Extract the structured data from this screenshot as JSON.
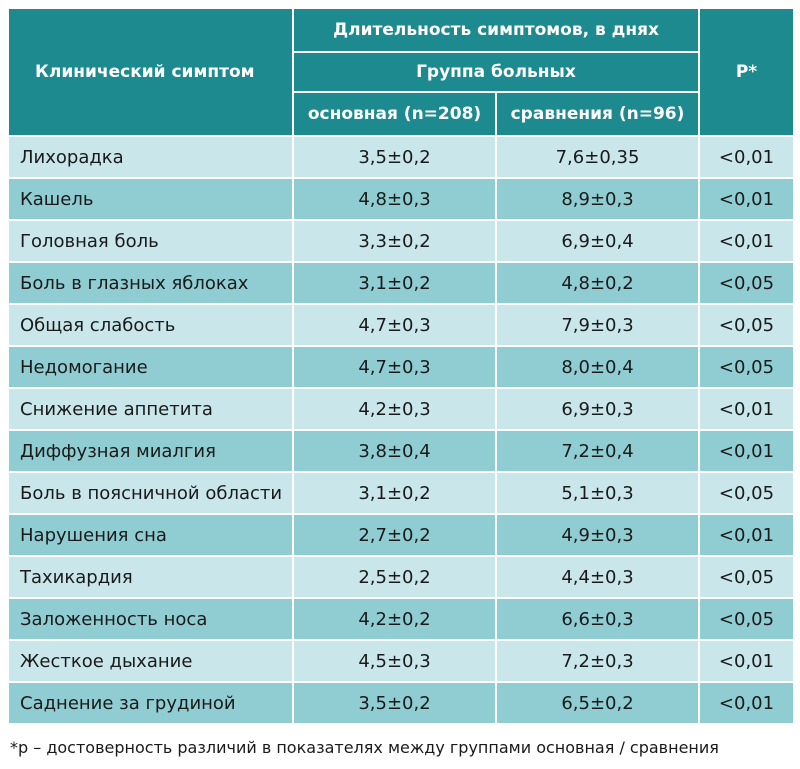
{
  "header": {
    "symptom": "Клинический симптом",
    "duration": "Длительность симптомов, в днях",
    "group": "Группа больных",
    "main_group": "основная (n=208)",
    "comparison_group": "сравнения (n=96)",
    "p": "P*"
  },
  "rows": [
    {
      "symptom": "Лихорадка",
      "main": "3,5±0,2",
      "comparison": "7,6±0,35",
      "p": "<0,01"
    },
    {
      "symptom": "Кашель",
      "main": "4,8±0,3",
      "comparison": "8,9±0,3",
      "p": "<0,01"
    },
    {
      "symptom": "Головная боль",
      "main": "3,3±0,2",
      "comparison": "6,9±0,4",
      "p": "<0,01"
    },
    {
      "symptom": "Боль в глазных яблоках",
      "main": "3,1±0,2",
      "comparison": "4,8±0,2",
      "p": "<0,05"
    },
    {
      "symptom": "Общая слабость",
      "main": "4,7±0,3",
      "comparison": "7,9±0,3",
      "p": "<0,05"
    },
    {
      "symptom": "Недомогание",
      "main": "4,7±0,3",
      "comparison": "8,0±0,4",
      "p": "<0,05"
    },
    {
      "symptom": "Снижение аппетита",
      "main": "4,2±0,3",
      "comparison": "6,9±0,3",
      "p": "<0,01"
    },
    {
      "symptom": "Диффузная миалгия",
      "main": "3,8±0,4",
      "comparison": "7,2±0,4",
      "p": "<0,01"
    },
    {
      "symptom": "Боль в поясничной области",
      "main": "3,1±0,2",
      "comparison": "5,1±0,3",
      "p": "<0,05"
    },
    {
      "symptom": "Нарушения сна",
      "main": "2,7±0,2",
      "comparison": "4,9±0,3",
      "p": "<0,01"
    },
    {
      "symptom": "Тахикардия",
      "main": "2,5±0,2",
      "comparison": "4,4±0,3",
      "p": "<0,05"
    },
    {
      "symptom": "Заложенность носа",
      "main": "4,2±0,2",
      "comparison": "6,6±0,3",
      "p": "<0,05"
    },
    {
      "symptom": "Жесткое дыхание",
      "main": "4,5±0,3",
      "comparison": "7,2±0,3",
      "p": "<0,01"
    },
    {
      "symptom": "Саднение за грудиной",
      "main": "3,5±0,2",
      "comparison": "6,5±0,2",
      "p": "<0,01"
    }
  ],
  "footnote": "*p – достоверность различий в показателях между группами основная / сравнения"
}
